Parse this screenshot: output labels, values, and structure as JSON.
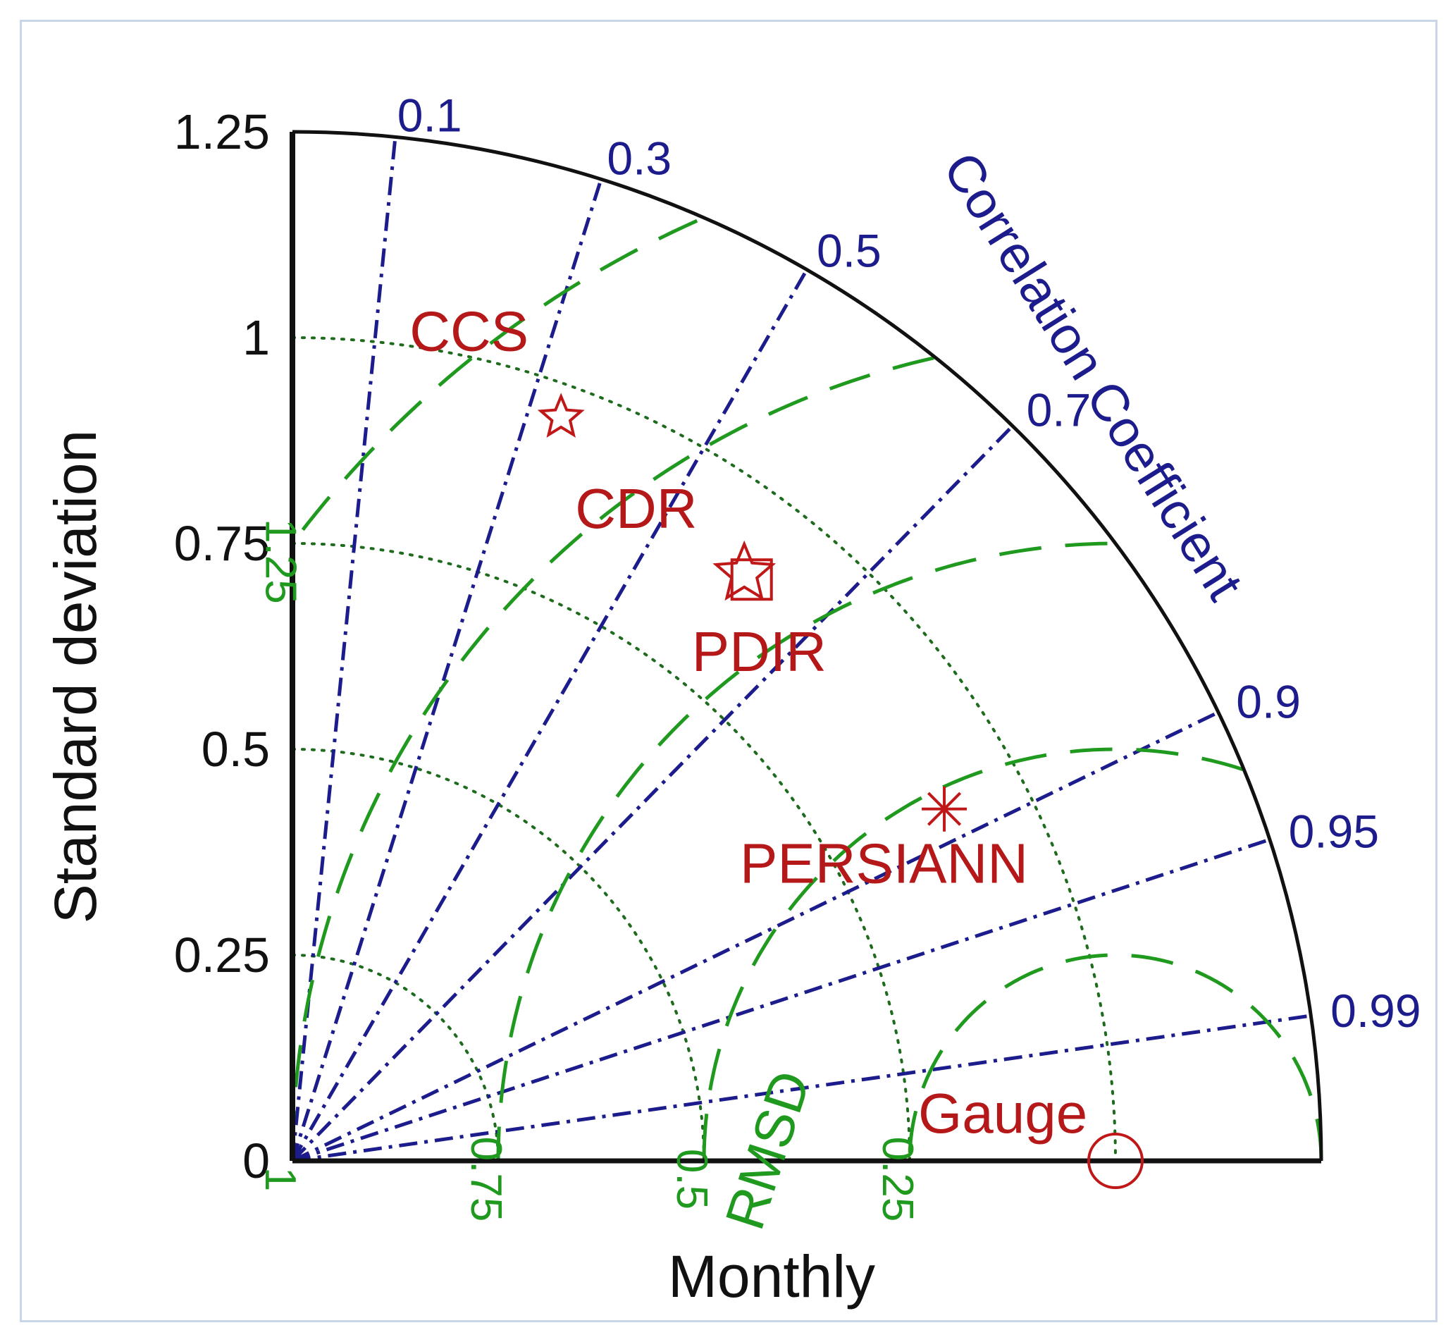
{
  "chart_data": {
    "type": "taylor_diagram",
    "title": "",
    "xlabel": "Monthly",
    "ylabel": "Standard deviation",
    "correlation_label": "Correlation Coefficient",
    "rmsd_label": "RMSD",
    "std_max": 1.25,
    "reference_std": 1.0,
    "std_ticks": [
      "0",
      "0.25",
      "0.5",
      "0.75",
      "1",
      "1.25"
    ],
    "std_tick_values": [
      0,
      0.25,
      0.5,
      0.75,
      1,
      1.25
    ],
    "correlation_ticks": [
      {
        "value": 0.1,
        "label": "0.1"
      },
      {
        "value": 0.3,
        "label": "0.3"
      },
      {
        "value": 0.5,
        "label": "0.5"
      },
      {
        "value": 0.7,
        "label": "0.7"
      },
      {
        "value": 0.9,
        "label": "0.9"
      },
      {
        "value": 0.95,
        "label": "0.95"
      },
      {
        "value": 0.99,
        "label": "0.99"
      }
    ],
    "rmsd_contours": [
      {
        "value": 0.25,
        "label": "0.25"
      },
      {
        "value": 0.5,
        "label": "0.5"
      },
      {
        "value": 0.75,
        "label": "0.75"
      },
      {
        "value": 1.0,
        "label": "1"
      },
      {
        "value": 1.25,
        "label": "1.25"
      }
    ],
    "points": [
      {
        "name": "Gauge",
        "label": "Gauge",
        "std": 1.0,
        "corr": 1.0,
        "marker": "circle"
      },
      {
        "name": "PERSIANN",
        "label": "PERSIANN",
        "std": 0.9,
        "corr": 0.88,
        "marker": "asterisk"
      },
      {
        "name": "PDIR",
        "label": "PDIR",
        "std": 0.9,
        "corr": 0.62,
        "marker": "square"
      },
      {
        "name": "CDR",
        "label": "CDR",
        "std": 0.9,
        "corr": 0.61,
        "marker": "pentagram"
      },
      {
        "name": "CCS",
        "label": "CCS",
        "std": 0.96,
        "corr": 0.34,
        "marker": "star"
      }
    ],
    "colors": {
      "points": "#c01818",
      "correlation_lines": "#1c1c8c",
      "rmsd_contours": "#1f9a1f",
      "std_arcs": "#1e6b1e",
      "axes": "#111111",
      "frame": "#c9d6ea"
    }
  }
}
